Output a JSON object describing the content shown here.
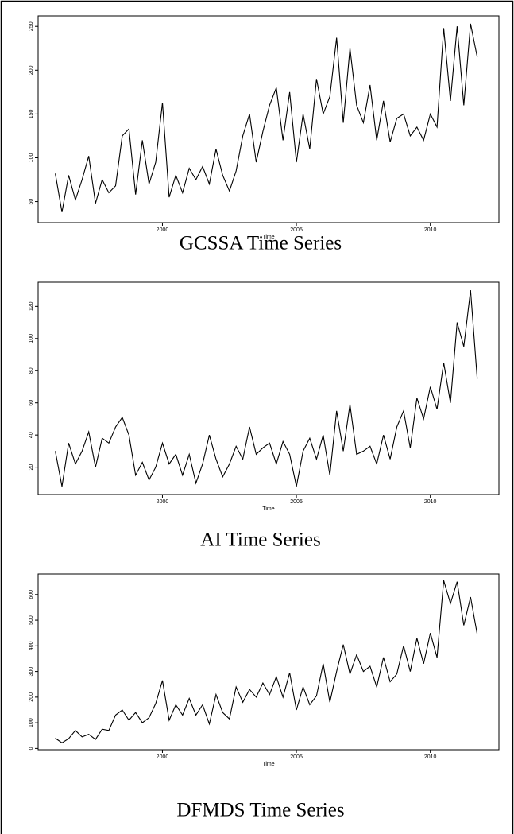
{
  "chart_data": [
    {
      "type": "line",
      "title": "GCSSA Time Series",
      "xlabel": "Time",
      "color": "#000000",
      "x": [
        1996,
        1996.25,
        1996.5,
        1996.75,
        1997,
        1997.25,
        1997.5,
        1997.75,
        1998,
        1998.25,
        1998.5,
        1998.75,
        1999,
        1999.25,
        1999.5,
        1999.75,
        2000,
        2000.25,
        2000.5,
        2000.75,
        2001,
        2001.25,
        2001.5,
        2001.75,
        2002,
        2002.25,
        2002.5,
        2002.75,
        2003,
        2003.25,
        2003.5,
        2003.75,
        2004,
        2004.25,
        2004.5,
        2004.75,
        2005,
        2005.25,
        2005.5,
        2005.75,
        2006,
        2006.25,
        2006.5,
        2006.75,
        2007,
        2007.25,
        2007.5,
        2007.75,
        2008,
        2008.25,
        2008.5,
        2008.75,
        2009,
        2009.25,
        2009.5,
        2009.75,
        2010,
        2010.25,
        2010.5,
        2010.75,
        2011,
        2011.25,
        2011.5,
        2011.75
      ],
      "values": [
        82,
        38,
        80,
        52,
        75,
        102,
        48,
        75,
        60,
        68,
        125,
        133,
        58,
        120,
        70,
        95,
        163,
        55,
        80,
        60,
        88,
        75,
        90,
        70,
        110,
        80,
        62,
        85,
        125,
        150,
        95,
        130,
        160,
        180,
        120,
        175,
        95,
        150,
        110,
        190,
        150,
        170,
        237,
        140,
        225,
        160,
        140,
        183,
        120,
        165,
        118,
        145,
        150,
        125,
        135,
        120,
        150,
        135,
        248,
        165,
        250,
        160,
        253,
        215
      ],
      "xlim": [
        1995.36,
        2012.56
      ],
      "ylim": [
        26,
        262
      ],
      "xticks": [
        2000,
        2005,
        2010
      ],
      "yticks": [
        50,
        100,
        150,
        200,
        250
      ]
    },
    {
      "type": "line",
      "title": "AI Time Series",
      "xlabel": "Time",
      "color": "#000000",
      "x": [
        1996,
        1996.25,
        1996.5,
        1996.75,
        1997,
        1997.25,
        1997.5,
        1997.75,
        1998,
        1998.25,
        1998.5,
        1998.75,
        1999,
        1999.25,
        1999.5,
        1999.75,
        2000,
        2000.25,
        2000.5,
        2000.75,
        2001,
        2001.25,
        2001.5,
        2001.75,
        2002,
        2002.25,
        2002.5,
        2002.75,
        2003,
        2003.25,
        2003.5,
        2003.75,
        2004,
        2004.25,
        2004.5,
        2004.75,
        2005,
        2005.25,
        2005.5,
        2005.75,
        2006,
        2006.25,
        2006.5,
        2006.75,
        2007,
        2007.25,
        2007.5,
        2007.75,
        2008,
        2008.25,
        2008.5,
        2008.75,
        2009,
        2009.25,
        2009.5,
        2009.75,
        2010,
        2010.25,
        2010.5,
        2010.75,
        2011,
        2011.25,
        2011.5,
        2011.75
      ],
      "values": [
        30,
        8,
        35,
        22,
        30,
        42,
        20,
        38,
        35,
        45,
        51,
        40,
        15,
        23,
        12,
        20,
        35,
        22,
        28,
        15,
        28,
        10,
        22,
        40,
        25,
        14,
        22,
        33,
        25,
        45,
        28,
        32,
        35,
        22,
        36,
        28,
        8,
        30,
        38,
        25,
        40,
        15,
        55,
        30,
        59,
        28,
        30,
        33,
        22,
        40,
        25,
        45,
        55,
        32,
        63,
        50,
        70,
        56,
        85,
        60,
        110,
        95,
        130,
        75
      ],
      "xlim": [
        1995.36,
        2012.56
      ],
      "ylim": [
        3,
        135
      ],
      "xticks": [
        2000,
        2005,
        2010
      ],
      "yticks": [
        20,
        40,
        60,
        80,
        100,
        120
      ]
    },
    {
      "type": "line",
      "title": "DFMDS Time Series",
      "xlabel": "Time",
      "color": "#000000",
      "x": [
        1996,
        1996.25,
        1996.5,
        1996.75,
        1997,
        1997.25,
        1997.5,
        1997.75,
        1998,
        1998.25,
        1998.5,
        1998.75,
        1999,
        1999.25,
        1999.5,
        1999.75,
        2000,
        2000.25,
        2000.5,
        2000.75,
        2001,
        2001.25,
        2001.5,
        2001.75,
        2002,
        2002.25,
        2002.5,
        2002.75,
        2003,
        2003.25,
        2003.5,
        2003.75,
        2004,
        2004.25,
        2004.5,
        2004.75,
        2005,
        2005.25,
        2005.5,
        2005.75,
        2006,
        2006.25,
        2006.5,
        2006.75,
        2007,
        2007.25,
        2007.5,
        2007.75,
        2008,
        2008.25,
        2008.5,
        2008.75,
        2009,
        2009.25,
        2009.5,
        2009.75,
        2010,
        2010.25,
        2010.5,
        2010.75,
        2011,
        2011.25,
        2011.5,
        2011.75
      ],
      "values": [
        40,
        22,
        38,
        70,
        45,
        55,
        35,
        75,
        70,
        130,
        150,
        110,
        140,
        100,
        120,
        175,
        265,
        110,
        170,
        130,
        195,
        130,
        170,
        95,
        210,
        140,
        115,
        240,
        180,
        230,
        200,
        255,
        210,
        280,
        200,
        295,
        150,
        240,
        170,
        205,
        330,
        180,
        300,
        405,
        290,
        365,
        300,
        320,
        240,
        355,
        260,
        290,
        400,
        300,
        430,
        330,
        450,
        355,
        655,
        565,
        650,
        480,
        590,
        445
      ],
      "xlim": [
        1995.36,
        2012.56
      ],
      "ylim": [
        -5,
        680
      ],
      "xticks": [
        2000,
        2005,
        2010
      ],
      "yticks": [
        0,
        100,
        200,
        300,
        400,
        500,
        600
      ]
    }
  ]
}
